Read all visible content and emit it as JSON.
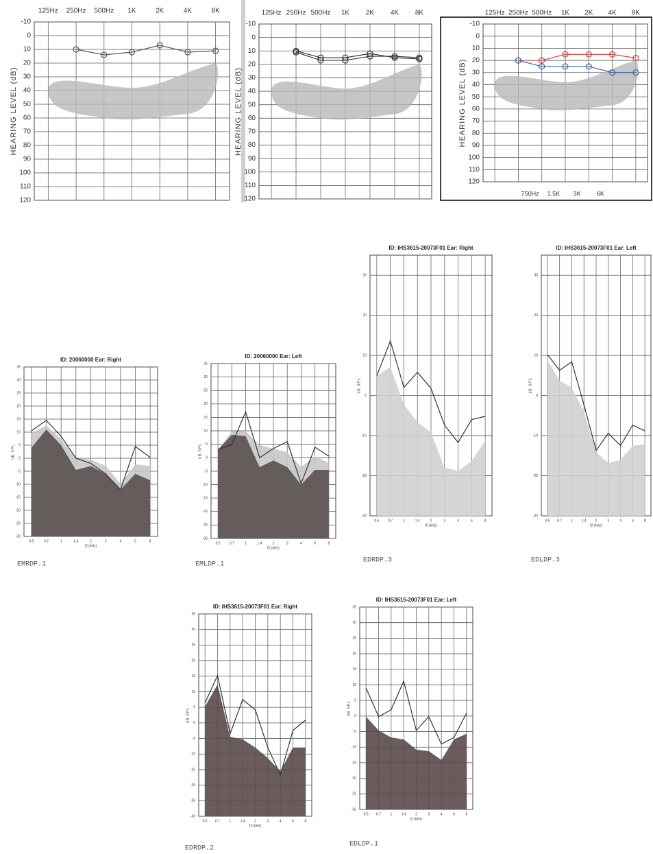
{
  "chart_data": [
    {
      "type": "line",
      "categories": [
        "125Hz",
        "250Hz",
        "500Hz",
        "1K",
        "2K",
        "4K",
        "8K"
      ],
      "ylabel": "HEARING LEVEL (dB)",
      "ylim": [
        -10,
        120
      ],
      "y_inverted": true,
      "yticks": [
        -10,
        0,
        10,
        20,
        30,
        40,
        50,
        60,
        70,
        80,
        90,
        100,
        110,
        120
      ],
      "grid": true,
      "series": [
        {
          "color": "#555555",
          "values": [
            null,
            10,
            14,
            12,
            7,
            12,
            11
          ]
        }
      ]
    },
    {
      "type": "line",
      "categories": [
        "125Hz",
        "250Hz",
        "500Hz",
        "1K",
        "2K",
        "4K",
        "8K"
      ],
      "ylabel": "HEARING LEVEL (dB)",
      "ylim": [
        -10,
        120
      ],
      "y_inverted": true,
      "yticks": [
        -10,
        0,
        10,
        20,
        30,
        40,
        50,
        60,
        70,
        80,
        90,
        100,
        110,
        120
      ],
      "grid": true,
      "series": [
        {
          "color": "#333333",
          "values": [
            null,
            10,
            15,
            15,
            12,
            15,
            16
          ]
        },
        {
          "color": "#333333",
          "values": [
            null,
            11,
            17,
            17,
            14,
            14,
            15
          ]
        }
      ]
    },
    {
      "type": "line",
      "categories": [
        "125Hz",
        "250Hz",
        "500Hz",
        "1K",
        "2K",
        "4K",
        "8K"
      ],
      "secondary_categories": [
        "750Hz",
        "1.5K",
        "3K",
        "6K"
      ],
      "ylabel": "HEARING LEVEL (dB)",
      "ylim": [
        -10,
        120
      ],
      "y_inverted": true,
      "yticks": [
        -10,
        0,
        10,
        20,
        30,
        40,
        50,
        60,
        70,
        80,
        90,
        100,
        110,
        120
      ],
      "grid": true,
      "series": [
        {
          "color": "#d04040",
          "values": [
            null,
            20,
            20,
            15,
            15,
            15,
            18
          ]
        },
        {
          "color": "#4060a0",
          "values": [
            null,
            20,
            25,
            25,
            25,
            30,
            30
          ]
        }
      ]
    },
    {
      "type": "area",
      "title": "ID: 20060000   Ear: Right",
      "caption": "EMRDP.1",
      "categories": [
        "0.5",
        "0.7",
        "1",
        "1.4",
        "2",
        "3",
        "4",
        "6",
        "8"
      ],
      "xlabel": "f2 (kHz)",
      "ylabel": "dB SPL",
      "ylim": [
        -30,
        35
      ],
      "yticks": [
        -30,
        -25,
        -20,
        -15,
        -10,
        -5,
        0,
        5,
        10,
        15,
        20,
        25,
        30,
        35
      ],
      "grid": true,
      "series": [
        {
          "style": "area",
          "color": "#c8c8c8",
          "values": [
            9.5,
            12.6,
            7.4,
            0,
            -0.5,
            -3,
            -9.7,
            -2.4,
            -3
          ]
        },
        {
          "style": "area",
          "color": "#5a5050",
          "values": [
            4,
            11,
            5,
            -4.5,
            -3,
            -6,
            -12,
            -6,
            -8.5
          ]
        },
        {
          "style": "line",
          "color": "#333333",
          "values": [
            10.5,
            14.5,
            8.4,
            0,
            -2,
            -6,
            -12,
            4.5,
            0.3
          ]
        }
      ]
    },
    {
      "type": "area",
      "title": "ID: 20060000   Ear: Left",
      "caption": "EMLDP.1",
      "categories": [
        "0.5",
        "0.7",
        "1",
        "1.4",
        "2",
        "3",
        "4",
        "6",
        "8"
      ],
      "xlabel": "f2 (kHz)",
      "ylabel": "dB SPL",
      "ylim": [
        -30,
        35
      ],
      "yticks": [
        -30,
        -25,
        -20,
        -15,
        -10,
        -5,
        0,
        5,
        10,
        15,
        20,
        25,
        30,
        35
      ],
      "grid": true,
      "series": [
        {
          "style": "area",
          "color": "#c8c8c8",
          "values": [
            3,
            9.8,
            10,
            4.7,
            3.4,
            2,
            -3.5,
            0.6,
            -1.9
          ]
        },
        {
          "style": "area",
          "color": "#5a5050",
          "values": [
            3,
            8.5,
            8,
            -3.5,
            -1,
            -3.5,
            -10,
            -4.5,
            -4.5
          ]
        },
        {
          "style": "line",
          "color": "#333333",
          "values": [
            3.1,
            4.9,
            17.1,
            0,
            3.4,
            6,
            -9.6,
            3.9,
            0.6
          ]
        }
      ]
    },
    {
      "type": "area",
      "title": "ID: IHS3615-20073F01   Ear: Right",
      "caption": "EDRDP.3",
      "categories": [
        "0.5",
        "0.7",
        "1",
        "1.4",
        "2",
        "3",
        "4",
        "6",
        "8"
      ],
      "xlabel": "f2 (kHz)",
      "ylabel": "dB SPL",
      "ylim": [
        -30,
        35
      ],
      "yticks": [
        -30,
        -20,
        -10,
        0,
        10,
        20,
        30
      ],
      "grid": true,
      "series": [
        {
          "style": "area",
          "color": "#d0d0d0",
          "values": [
            4.9,
            7.1,
            -2.3,
            -6.6,
            -9.2,
            -18,
            -18.8,
            -16.4,
            -11.2
          ]
        },
        {
          "style": "line",
          "color": "#333333",
          "values": [
            4.9,
            13.6,
            2,
            5.8,
            1.8,
            -7.4,
            -11.7,
            -6,
            -5.2
          ]
        }
      ]
    },
    {
      "type": "area",
      "title": "ID: IHS3615-20073F01   Ear: Left",
      "caption": "EDLDP.3",
      "categories": [
        "0.5",
        "0.7",
        "1",
        "1.4",
        "2",
        "3",
        "4",
        "6",
        "8"
      ],
      "xlabel": "f2 (kHz)",
      "ylabel": "dB SPL",
      "ylim": [
        -30,
        35
      ],
      "yticks": [
        -30,
        -20,
        -10,
        0,
        10,
        20,
        30
      ],
      "grid": true,
      "series": [
        {
          "style": "area",
          "color": "#d0d0d0",
          "values": [
            8.8,
            3.7,
            2,
            -4,
            -14.2,
            -16.8,
            -16,
            -12.5,
            -12.2
          ]
        },
        {
          "style": "line",
          "color": "#333333",
          "values": [
            10.2,
            6.3,
            8.4,
            -2.3,
            -13.7,
            -9.4,
            -12.5,
            -7.4,
            -8.8
          ]
        }
      ]
    },
    {
      "type": "area",
      "title": "ID: IHS3615-20073F01   Ear: Right",
      "caption": "EDRDP.2",
      "categories": [
        "0.5",
        "0.7",
        "1",
        "1.4",
        "2",
        "3",
        "4",
        "6",
        "8"
      ],
      "xlabel": "f2 (kHz)",
      "ylabel": "dB SPL",
      "ylim": [
        -30,
        35
      ],
      "yticks": [
        -30,
        -25,
        -20,
        -15,
        -10,
        -5,
        0,
        5,
        10,
        15,
        20,
        25,
        30,
        35
      ],
      "grid": true,
      "series": [
        {
          "style": "area",
          "color": "#5a4a4a",
          "values": [
            5.3,
            12.3,
            -4.5,
            -5.3,
            -7.9,
            -11.3,
            -15.6,
            -7.9,
            -7.9
          ]
        },
        {
          "style": "line",
          "color": "#333333",
          "values": [
            6.4,
            15.2,
            -3.5,
            7.5,
            4.2,
            -7.9,
            -16.7,
            -2.4,
            0.9
          ]
        }
      ]
    },
    {
      "type": "area",
      "title": "ID: IHS3615-20073F01   Ear: Left",
      "caption": "EDLDP.1",
      "categories": [
        "0.5",
        "0.7",
        "1",
        "1.4",
        "2",
        "3",
        "4",
        "6",
        "8"
      ],
      "xlabel": "f2 (kHz)",
      "ylabel": "dB SPL",
      "ylim": [
        -30,
        35
      ],
      "yticks": [
        -30,
        -25,
        -20,
        -15,
        -10,
        -5,
        0,
        5,
        10,
        15,
        20,
        25,
        30,
        35
      ],
      "grid": true,
      "series": [
        {
          "style": "area",
          "color": "#5a4a4a",
          "values": [
            -0.2,
            -4.6,
            -6.9,
            -7.5,
            -10.8,
            -11.3,
            -14.1,
            -7.5,
            -5.7
          ]
        },
        {
          "style": "line",
          "color": "#333333",
          "values": [
            9,
            -0.2,
            2,
            11.2,
            -4.6,
            -0.2,
            -9,
            -6.9,
            0.9
          ]
        }
      ]
    }
  ]
}
